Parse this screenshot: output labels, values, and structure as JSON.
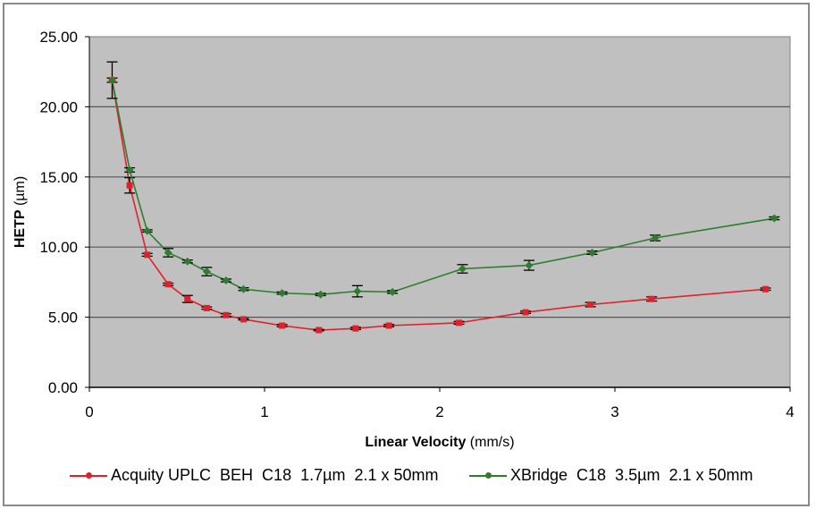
{
  "chart_data": {
    "type": "line",
    "title": "",
    "xlabel_bold": "Linear Velocity",
    "xlabel_unit": " (mm/s)",
    "ylabel_bold": "HETP",
    "ylabel_unit": " (µm)",
    "xlim": [
      0,
      4
    ],
    "ylim": [
      0,
      25
    ],
    "x_ticks": [
      "0",
      "1",
      "2",
      "3",
      "4"
    ],
    "y_ticks": [
      "0.00",
      "5.00",
      "10.00",
      "15.00",
      "20.00",
      "25.00"
    ],
    "grid": "horizontal",
    "plot_background": "#c0c0c0",
    "legend_position": "bottom",
    "series": [
      {
        "name": "Acquity UPLC  BEH  C18  1.7µm  2.1 x 50mm",
        "color": "#e0202a",
        "marker": "square",
        "x": [
          0.13,
          0.23,
          0.33,
          0.45,
          0.56,
          0.67,
          0.78,
          0.88,
          1.1,
          1.31,
          1.52,
          1.71,
          2.11,
          2.49,
          2.86,
          3.21,
          3.86
        ],
        "y": [
          21.9,
          14.4,
          9.45,
          7.35,
          6.3,
          5.65,
          5.15,
          4.85,
          4.4,
          4.08,
          4.2,
          4.4,
          4.6,
          5.35,
          5.9,
          6.3,
          7.0
        ],
        "err": [
          0.15,
          0.55,
          0.1,
          0.08,
          0.25,
          0.08,
          0.1,
          0.05,
          0.08,
          0.05,
          0.08,
          0.08,
          0.1,
          0.08,
          0.15,
          0.15,
          0.08
        ]
      },
      {
        "name": "XBridge  C18  3.5µm  2.1 x 50mm",
        "color": "#2e7d2e",
        "marker": "diamond",
        "x": [
          0.13,
          0.23,
          0.33,
          0.45,
          0.56,
          0.67,
          0.78,
          0.88,
          1.1,
          1.32,
          1.53,
          1.73,
          2.13,
          2.51,
          2.87,
          3.23,
          3.91
        ],
        "y": [
          21.9,
          15.5,
          11.15,
          9.6,
          8.98,
          8.25,
          7.62,
          7.0,
          6.72,
          6.62,
          6.85,
          6.8,
          8.45,
          8.7,
          9.6,
          10.65,
          12.05
        ],
        "err": [
          1.3,
          0.15,
          0.08,
          0.3,
          0.1,
          0.3,
          0.1,
          0.1,
          0.08,
          0.08,
          0.4,
          0.1,
          0.3,
          0.35,
          0.12,
          0.2,
          0.1
        ]
      }
    ]
  }
}
